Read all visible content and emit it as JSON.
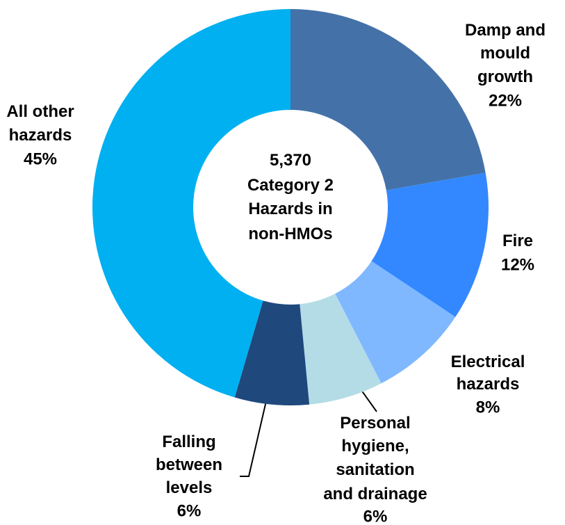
{
  "chart_data": {
    "type": "donut",
    "center_text": "5,370 Category 2 Hazards in non-HMOs",
    "categories": [
      "Damp and mould growth",
      "Fire",
      "Electrical hazards",
      "Personal hygiene, sanitation and drainage",
      "Falling between levels",
      "All other hazards"
    ],
    "values": [
      22,
      12,
      8,
      6,
      6,
      45
    ],
    "value_labels": [
      "22%",
      "12%",
      "8%",
      "6%",
      "6%",
      "45%"
    ],
    "colors": [
      "#4472a8",
      "#3388ff",
      "#80b8ff",
      "#b4dce6",
      "#1f497d",
      "#00b0f0"
    ]
  }
}
